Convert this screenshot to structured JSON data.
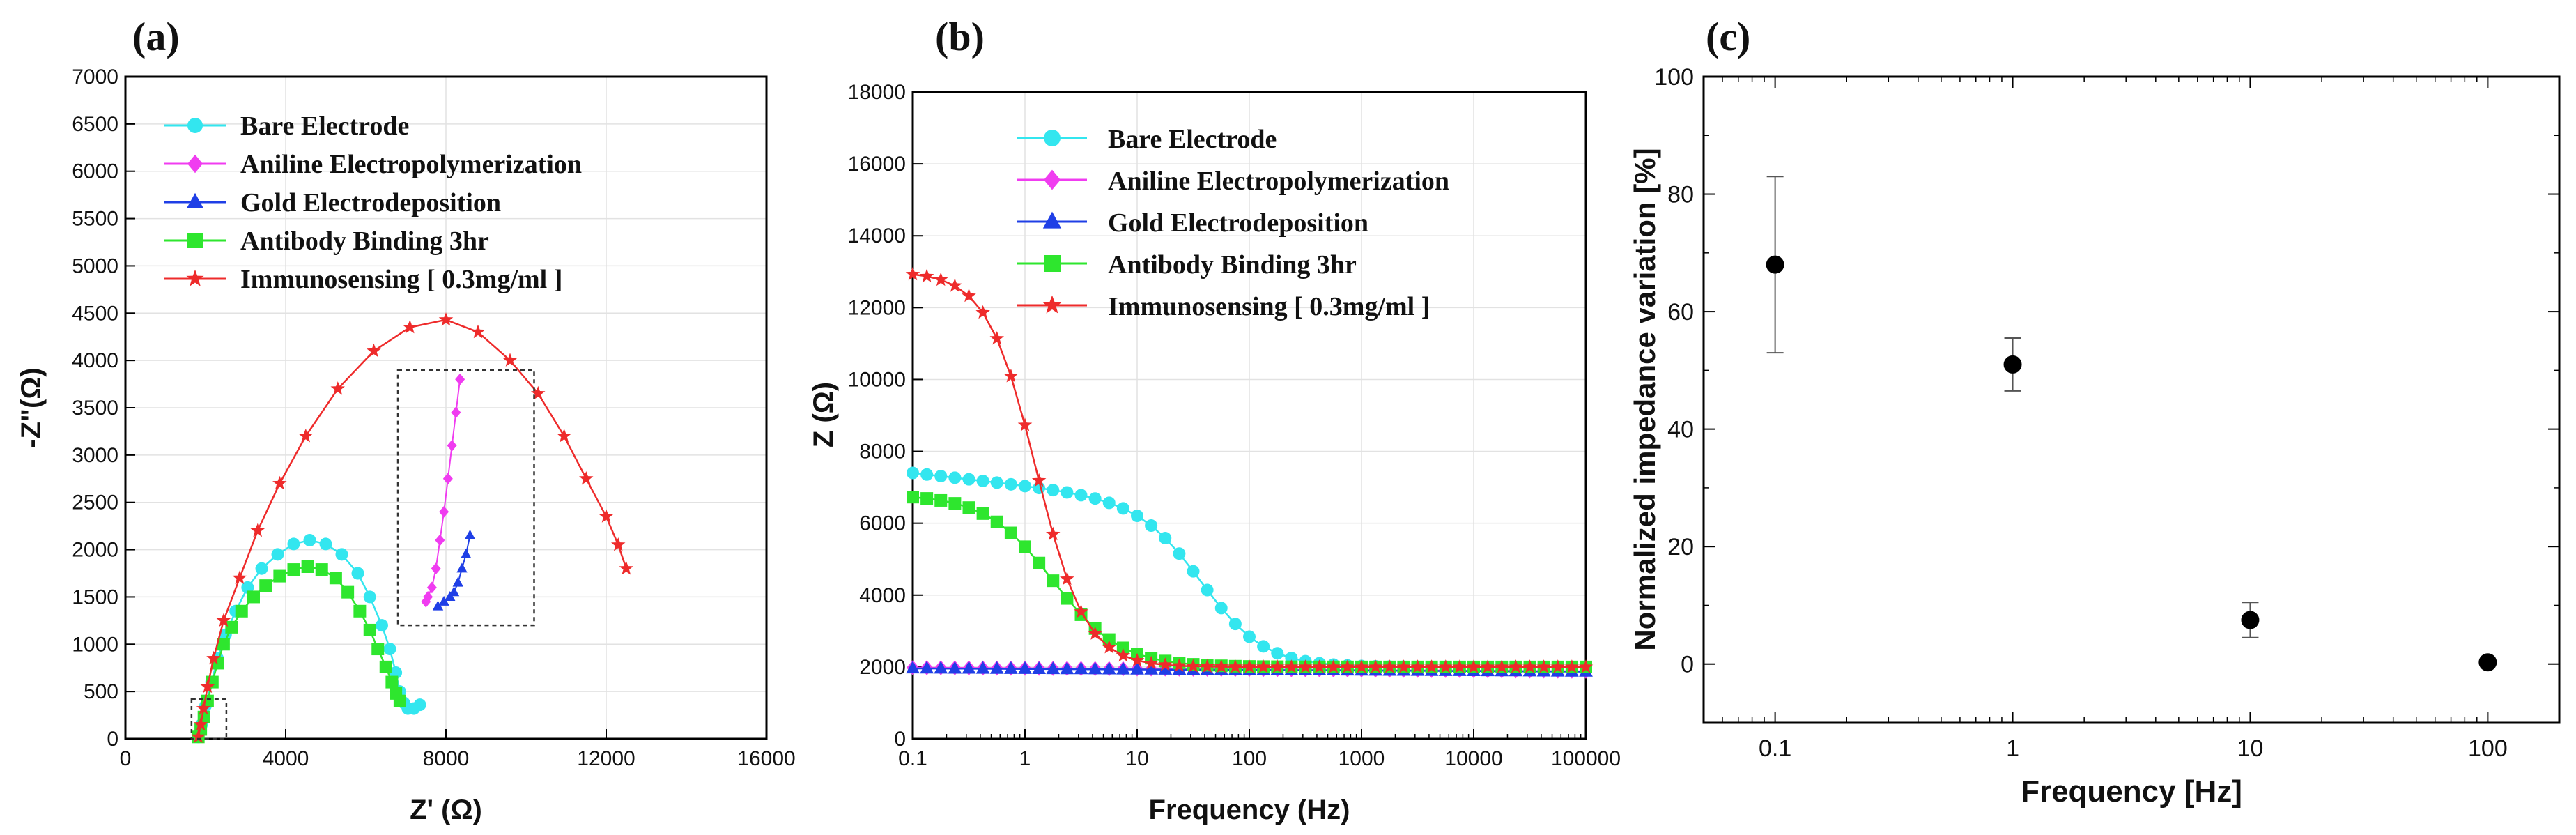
{
  "figure": {
    "panel_labels": [
      "(a)",
      "(b)",
      "(c)"
    ]
  },
  "colors": {
    "bare": "#33e6ef",
    "aniline": "#f03cf0",
    "gold": "#1f3fe6",
    "antibody": "#2ee62e",
    "immuno": "#ee2b2b",
    "axis": "#000000"
  },
  "chart_data": [
    {
      "type": "scatter",
      "title": "(a)",
      "xlabel": "Z' (Ω)",
      "ylabel": "-Z\"(Ω)",
      "xlim": [
        0,
        16000
      ],
      "ylim": [
        0,
        7000
      ],
      "xticks": [
        0,
        4000,
        8000,
        12000,
        16000
      ],
      "yticks": [
        0,
        500,
        1000,
        1500,
        2000,
        2500,
        3000,
        3500,
        4000,
        4500,
        5000,
        5500,
        6000,
        6500,
        7000
      ],
      "legend": [
        "Bare Electrode",
        "Aniline Electropolymerization",
        "Gold Electrodeposition",
        "Antibody Binding 3hr",
        "Immunosensing [ 0.3mg/ml ]"
      ],
      "inset_x": [
        6800,
        10200
      ],
      "inset_y": [
        1200,
        3900
      ],
      "zoom_box_x": [
        1650,
        2520
      ],
      "zoom_box_y": [
        0,
        420
      ],
      "series": [
        {
          "name": "Bare Electrode",
          "color_key": "bare",
          "marker": "circle",
          "x": [
            1820,
            1900,
            2000,
            2150,
            2300,
            2500,
            2750,
            3050,
            3400,
            3800,
            4200,
            4600,
            5000,
            5400,
            5800,
            6100,
            6400,
            6600,
            6750,
            6850,
            6950,
            7050,
            7200,
            7350
          ],
          "y": [
            20,
            150,
            350,
            600,
            850,
            1100,
            1350,
            1600,
            1800,
            1950,
            2060,
            2100,
            2060,
            1950,
            1750,
            1500,
            1200,
            950,
            700,
            500,
            380,
            320,
            320,
            360
          ]
        },
        {
          "name": "Antibody Binding 3hr",
          "color_key": "antibody",
          "marker": "square",
          "x": [
            1820,
            1880,
            1960,
            2050,
            2170,
            2300,
            2450,
            2650,
            2900,
            3200,
            3500,
            3850,
            4200,
            4550,
            4900,
            5250,
            5550,
            5850,
            6100,
            6300,
            6500,
            6650,
            6750,
            6850
          ],
          "y": [
            20,
            100,
            230,
            400,
            600,
            800,
            1000,
            1180,
            1350,
            1500,
            1620,
            1720,
            1790,
            1820,
            1790,
            1700,
            1550,
            1350,
            1150,
            950,
            760,
            600,
            480,
            400
          ]
        },
        {
          "name": "Immunosensing [ 0.3mg/ml ]",
          "color_key": "immuno",
          "marker": "star",
          "x": [
            1820,
            1880,
            1950,
            2050,
            2200,
            2450,
            2850,
            3300,
            3850,
            4500,
            5300,
            6200,
            7100,
            8000,
            8800,
            9600,
            10300,
            10950,
            11500,
            12000,
            12300,
            12500
          ],
          "y": [
            20,
            150,
            320,
            550,
            850,
            1250,
            1700,
            2200,
            2700,
            3200,
            3700,
            4100,
            4350,
            4430,
            4300,
            4000,
            3650,
            3200,
            2750,
            2350,
            2050,
            1800
          ]
        },
        {
          "name": "Aniline Electropolymerization (inset)",
          "color_key": "aniline",
          "marker": "diamond",
          "x": [
            7500,
            7550,
            7650,
            7750,
            7850,
            7950,
            8050,
            8150,
            8250,
            8350
          ],
          "y": [
            1450,
            1500,
            1600,
            1800,
            2100,
            2400,
            2750,
            3100,
            3450,
            3800
          ]
        },
        {
          "name": "Gold Electrodeposition (inset)",
          "color_key": "gold",
          "marker": "triangle",
          "x": [
            7800,
            7950,
            8100,
            8200,
            8300,
            8400,
            8500,
            8600
          ],
          "y": [
            1400,
            1450,
            1500,
            1550,
            1650,
            1800,
            1950,
            2150
          ]
        }
      ]
    },
    {
      "type": "line",
      "title": "(b)",
      "xlabel": "Frequency (Hz)",
      "ylabel": "Z (Ω)",
      "xscale": "log",
      "xlim": [
        0.1,
        100000
      ],
      "ylim": [
        0,
        18000
      ],
      "xticks": [
        0.1,
        1,
        10,
        100,
        1000,
        10000,
        100000
      ],
      "xticklabels": [
        "0.1",
        "1",
        "10",
        "100",
        "1000",
        "10000",
        "100000"
      ],
      "yticks": [
        0,
        2000,
        4000,
        6000,
        8000,
        10000,
        12000,
        14000,
        16000,
        18000
      ],
      "legend": [
        "Bare Electrode",
        "Aniline Electropolymerization",
        "Gold Electrodeposition",
        "Antibody Binding 3hr",
        "Immunosensing [ 0.3mg/ml ]"
      ],
      "x_log_range": [
        -1,
        5
      ],
      "points_per_series": 49,
      "series": [
        {
          "name": "Bare Electrode",
          "color_key": "bare",
          "marker": "circle",
          "curve": {
            "kind": "sigmoid",
            "hi": 7400,
            "lo": 2000,
            "center_log": 1.6,
            "width": 0.28,
            "slope": 350
          }
        },
        {
          "name": "Aniline Electropolymerization",
          "color_key": "aniline",
          "marker": "diamond",
          "curve": {
            "kind": "flat",
            "hi": 1980,
            "lo": 1880
          }
        },
        {
          "name": "Gold Electrodeposition",
          "color_key": "gold",
          "marker": "triangle",
          "curve": {
            "kind": "flat",
            "hi": 1960,
            "lo": 1870
          }
        },
        {
          "name": "Antibody Binding 3hr",
          "color_key": "antibody",
          "marker": "square",
          "curve": {
            "kind": "sigmoid",
            "hi": 6800,
            "lo": 2000,
            "center_log": 0.25,
            "width": 0.3,
            "slope": 0
          }
        },
        {
          "name": "Immunosensing [ 0.3mg/ml ]",
          "color_key": "immuno",
          "marker": "star",
          "curve": {
            "kind": "sigmoid",
            "hi": 13000,
            "lo": 2000,
            "center_log": 0.1,
            "width": 0.22,
            "slope": 0
          }
        }
      ]
    },
    {
      "type": "scatter",
      "title": "(c)",
      "xlabel": "Frequency [Hz]",
      "ylabel": "Normalized impedance variation [%]",
      "xscale": "log",
      "xlim": [
        0.05,
        200
      ],
      "ylim": [
        -10,
        100
      ],
      "xticks": [
        0.1,
        1,
        10,
        100
      ],
      "xticklabels": [
        "0.1",
        "1",
        "10",
        "100"
      ],
      "yticks": [
        0,
        20,
        40,
        60,
        80,
        100
      ],
      "series": [
        {
          "name": "Normalized impedance variation",
          "x": [
            0.1,
            1,
            10,
            100
          ],
          "y": [
            68,
            51,
            7.5,
            0.3
          ],
          "err": [
            15,
            4.5,
            3,
            0
          ]
        }
      ]
    }
  ]
}
